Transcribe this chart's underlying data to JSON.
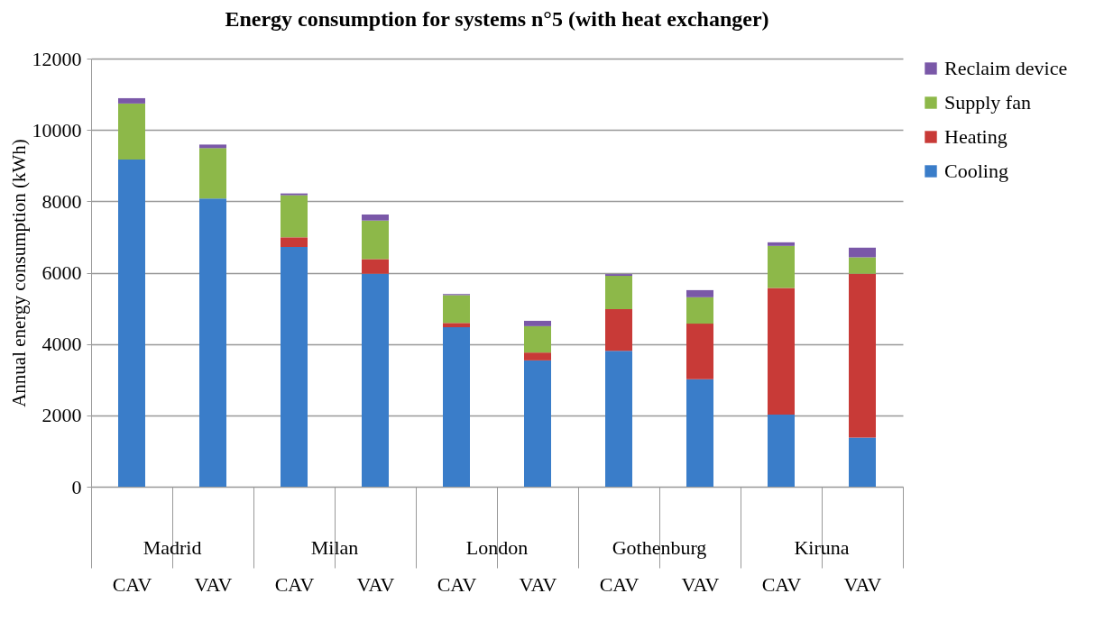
{
  "chart_data": {
    "type": "bar",
    "title": "Energy consumption for systems n°5 (with heat exchanger)",
    "ylabel": "Annual energy consumption (kWh)",
    "categories": [
      "CAV",
      "VAV",
      "CAV",
      "VAV",
      "CAV",
      "VAV",
      "CAV",
      "VAV",
      "CAV",
      "VAV"
    ],
    "annotations": [
      "Madrid",
      "Milan",
      "London",
      "Gothenburg",
      "Kiruna"
    ],
    "stacked": true,
    "ylim": [
      0,
      12000
    ],
    "yticks": [
      0,
      2000,
      4000,
      6000,
      8000,
      10000,
      12000
    ],
    "grid": "y",
    "legend": "right",
    "series": [
      {
        "name": "Cooling",
        "color": "#3a7dc9",
        "values": [
          9170,
          8080,
          6720,
          5970,
          4470,
          3540,
          3810,
          3010,
          2020,
          1380
        ]
      },
      {
        "name": "Heating",
        "color": "#c83a37",
        "values": [
          null,
          null,
          270,
          410,
          120,
          220,
          1170,
          1560,
          3550,
          4590
        ]
      },
      {
        "name": "Supply fan",
        "color": "#8db849",
        "values": [
          1570,
          1410,
          1180,
          1080,
          780,
          740,
          930,
          740,
          1180,
          460
        ]
      },
      {
        "name": "Reclaim device",
        "color": "#7a58a8",
        "values": [
          150,
          100,
          50,
          170,
          30,
          150,
          50,
          200,
          100,
          270
        ]
      }
    ]
  }
}
